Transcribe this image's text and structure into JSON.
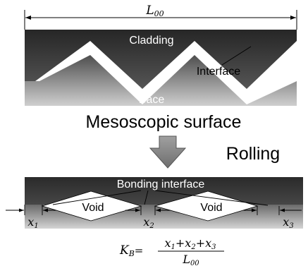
{
  "dimension_label": "L",
  "dimension_sub": "00",
  "cladding_label": "Cladding",
  "interface_label": "Interface",
  "base_label": "Bace",
  "mesoscopic_label": "Mesoscopic surface",
  "rolling_label": "Rolling",
  "bonding_label": "Bonding interface",
  "void_left_label": "Void",
  "void_right_label": "Void",
  "x1_label": "x",
  "x1_sub": "1",
  "x2_label": "x",
  "x2_sub": "2",
  "x3_label": "x",
  "x3_sub": "3",
  "formula": {
    "lhs": "K",
    "lhs_sub": "B",
    "equals": "=",
    "num_x1": "x",
    "num_sub1": "1",
    "plus1": "+",
    "num_x2": "x",
    "num_sub2": "2",
    "plus2": "+",
    "num_x3": "x",
    "num_sub3": "3",
    "den": "L",
    "den_sub": "00"
  },
  "colors": {
    "cladding_dark": "#2b2b2b",
    "cladding_light": "#5a5a5a",
    "base_dark": "#5c5c5c",
    "base_light": "#c8c8c8",
    "arrow": "#8a8a8a"
  }
}
